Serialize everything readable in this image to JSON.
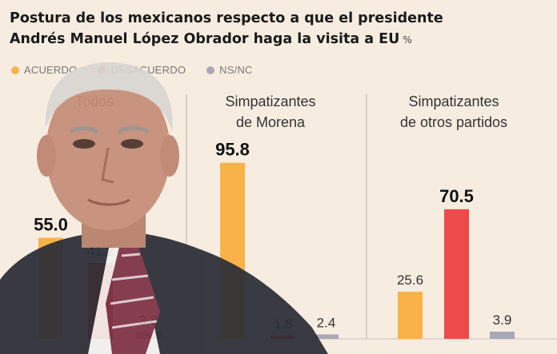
{
  "title_line1": "Postura de los mexicanos respecto a que el presidente",
  "title_line2": "Andrés Manuel López Obrador haga la visita a EU",
  "unit": "%",
  "colors": {
    "acuerdo": "#f9b248",
    "desacuerdo": "#ed4a4c",
    "nsnc": "#a8a7b6"
  },
  "chart_data": {
    "type": "bar",
    "categories": [
      "Todos",
      "Simpatizantes de Morena",
      "Simpatizantes de otros partidos"
    ],
    "series": [
      {
        "name": "ACUERDO",
        "values": [
          55.0,
          95.8,
          25.6
        ]
      },
      {
        "name": "DESACUERDO",
        "values": [
          41.2,
          1.8,
          70.5
        ]
      },
      {
        "name": "NS/NC",
        "values": [
          3.8,
          2.4,
          3.9
        ]
      }
    ],
    "value_labels": [
      [
        "55.0",
        "41.2",
        "3.8"
      ],
      [
        "95.8",
        "1.8",
        "2.4"
      ],
      [
        "25.6",
        "70.5",
        "3.9"
      ]
    ],
    "panel_labels": [
      [
        "Todos"
      ],
      [
        "Simpatizantes",
        "de Morena"
      ],
      [
        "Simpatizantes",
        "de otros partidos"
      ]
    ],
    "ylim": [
      0,
      100
    ],
    "legend_position": "top-left",
    "grid": false
  }
}
